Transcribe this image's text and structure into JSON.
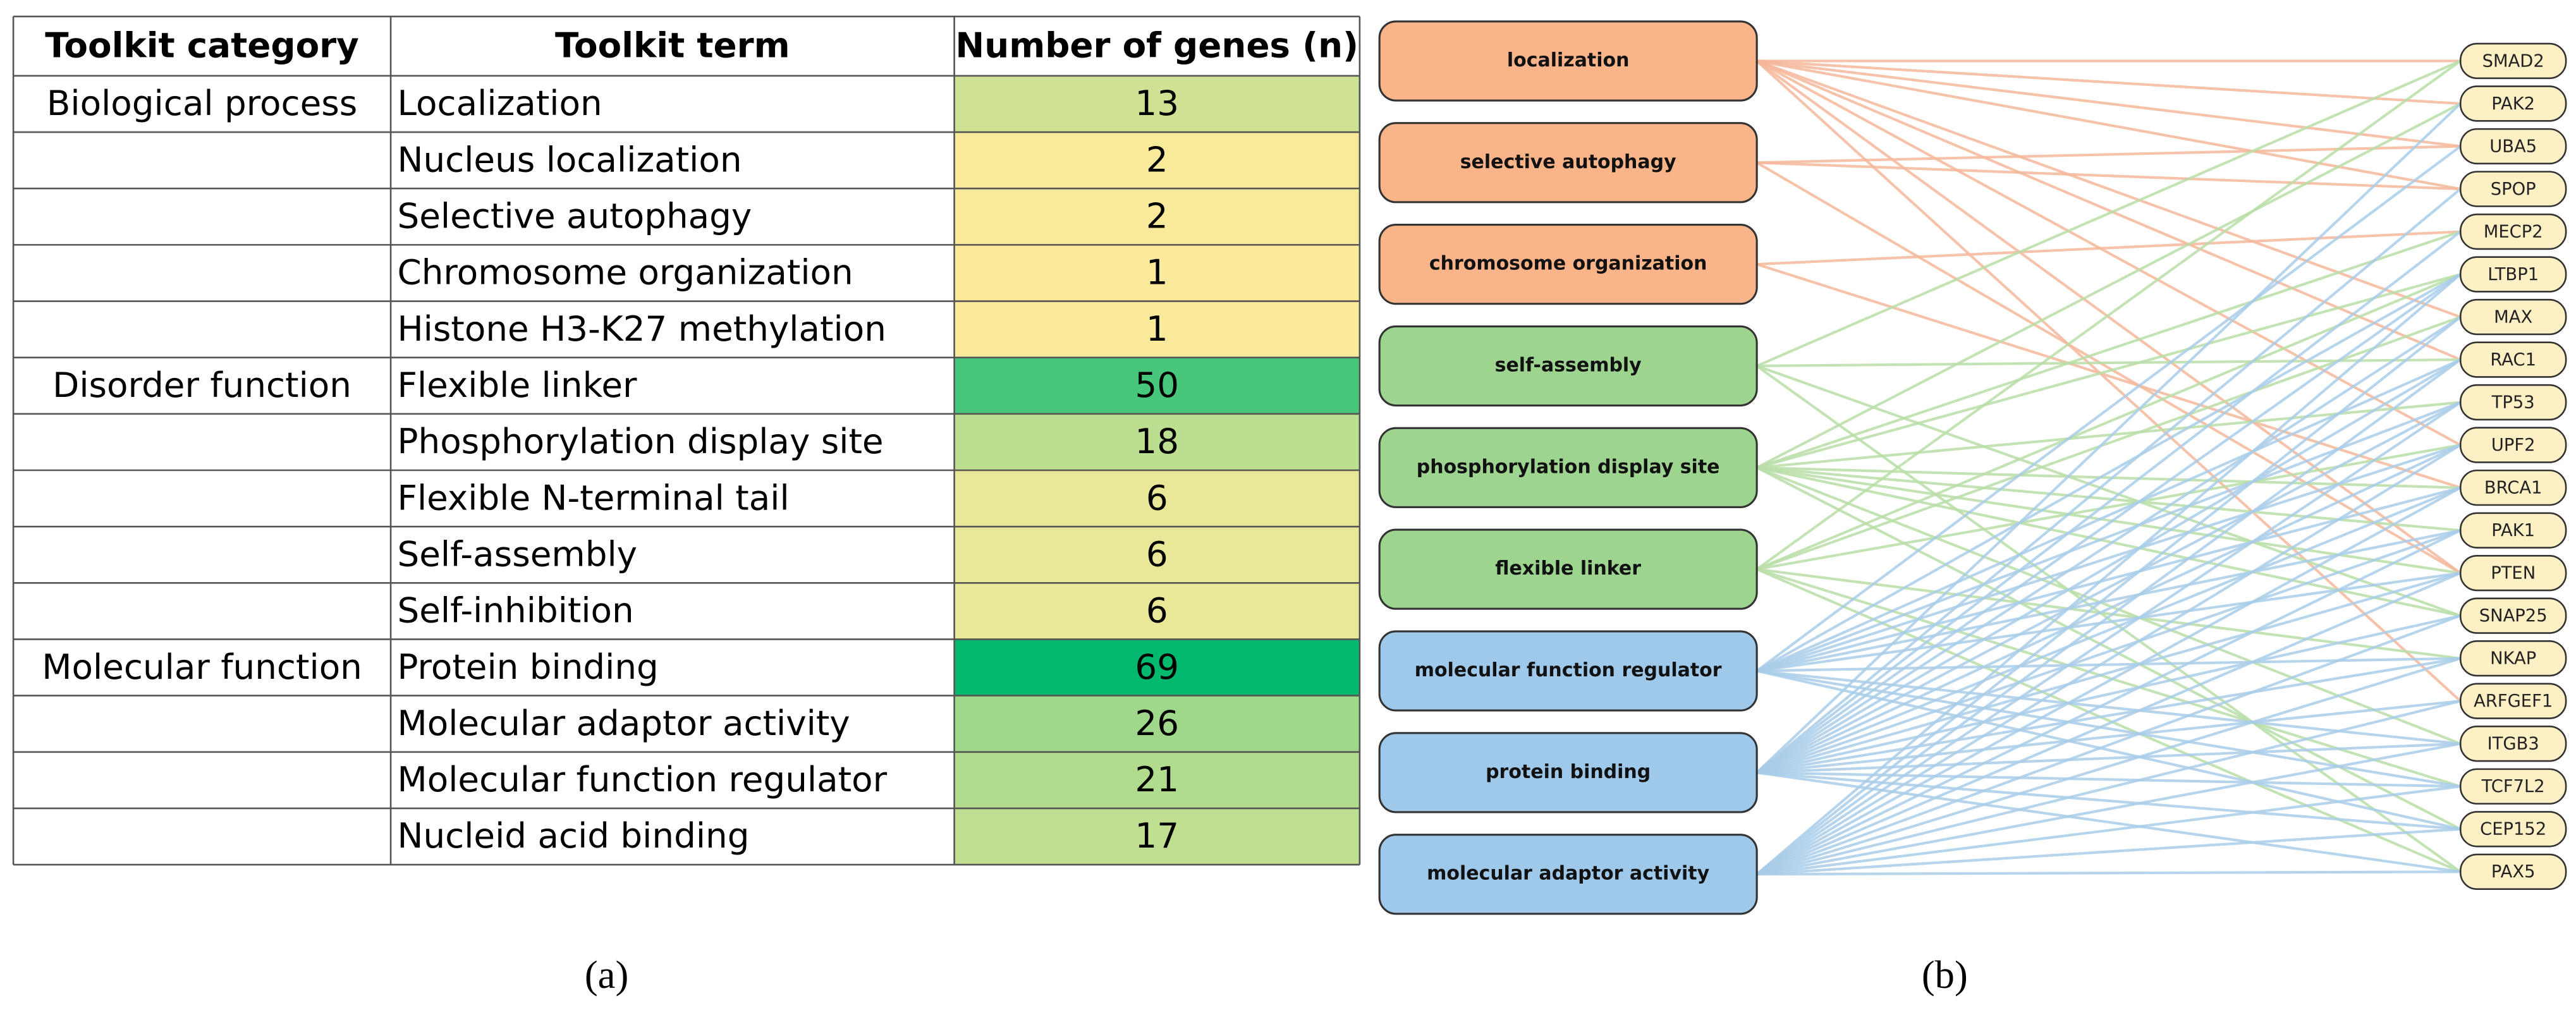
{
  "table": {
    "header": [
      "Toolkit category",
      "Toolkit term",
      "Number of genes (n)"
    ],
    "rows": [
      [
        "Biological process",
        "Localization",
        13
      ],
      [
        null,
        "Nucleus localization",
        2
      ],
      [
        null,
        "Selective autophagy",
        2
      ],
      [
        null,
        "Chromosome organization",
        1
      ],
      [
        null,
        "Histone H3-K27 methylation",
        1
      ],
      [
        "Disorder function",
        "Flexible linker",
        50
      ],
      [
        null,
        "Phosphorylation display site",
        18
      ],
      [
        null,
        "Flexible N-terminal tail",
        6
      ],
      [
        null,
        "Self-assembly",
        6
      ],
      [
        null,
        "Self-inhibition",
        6
      ],
      [
        "Molecular function",
        "Protein binding",
        69
      ],
      [
        null,
        "Molecular adaptor activity",
        26
      ],
      [
        null,
        "Molecular function regulator",
        21
      ],
      [
        null,
        "Nucleid acid binding",
        17
      ]
    ],
    "color_scale": [
      "#ffeb9c",
      "#00b96f"
    ]
  },
  "network": {
    "terms": [
      {
        "label": "localization",
        "color": "#f9b48a",
        "edge_color": "#f4b79a"
      },
      {
        "label": "selective autophagy",
        "color": "#f9b48a",
        "edge_color": "#f4b79a"
      },
      {
        "label": "chromosome organization",
        "color": "#f9b48a",
        "edge_color": "#f4b79a"
      },
      {
        "label": "self-assembly",
        "color": "#9dd48f",
        "edge_color": "#b9dea8"
      },
      {
        "label": "phosphorylation display site",
        "color": "#9dd48f",
        "edge_color": "#b9dea8"
      },
      {
        "label": "flexible linker",
        "color": "#9dd48f",
        "edge_color": "#b9dea8"
      },
      {
        "label": "molecular function regulator",
        "color": "#9fc9ea",
        "edge_color": "#a9cde9"
      },
      {
        "label": "protein binding",
        "color": "#9fc9ea",
        "edge_color": "#a9cde9"
      },
      {
        "label": "molecular adaptor activity",
        "color": "#9fc9ea",
        "edge_color": "#a9cde9"
      }
    ],
    "genes": [
      "SMAD2",
      "PAK2",
      "UBA5",
      "SPOP",
      "MECP2",
      "LTBP1",
      "MAX",
      "RAC1",
      "TP53",
      "UPF2",
      "BRCA1",
      "PAK1",
      "PTEN",
      "SNAP25",
      "NKAP",
      "ARFGEF1",
      "ITGB3",
      "TCF7L2",
      "CEP152",
      "PAX5"
    ],
    "gene_color": "#fdf0c4"
  },
  "captions": [
    "(a)",
    "(b)"
  ]
}
